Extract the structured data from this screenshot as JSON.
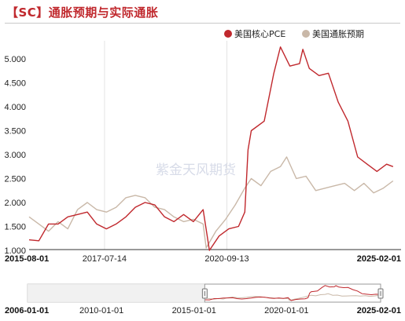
{
  "title": "【SC】通胀预期与实际通胀",
  "watermark": "紫金天风期货",
  "chart_data": {
    "type": "line",
    "x_range": [
      "2015-08-01",
      "2025-02-01"
    ],
    "ylim": [
      1.0,
      5.2
    ],
    "yticks": [
      "5.000",
      "4.500",
      "4.000",
      "3.500",
      "3.000",
      "2.500",
      "2.000",
      "1.500",
      "1.000"
    ],
    "ytick_values": [
      5.0,
      4.5,
      4.0,
      3.5,
      3.0,
      2.5,
      2.0,
      1.5,
      1.0
    ],
    "xticks": [
      {
        "date": "2015-08-01",
        "label": "2015-08-01",
        "bold": true
      },
      {
        "date": "2017-07-14",
        "label": "2017-07-14",
        "bold": false
      },
      {
        "date": "2020-09-13",
        "label": "2020-09-13",
        "bold": false
      },
      {
        "date": "2025-02-01",
        "label": "2025-02-01",
        "bold": true
      }
    ],
    "legend_position": "top-right",
    "grid": "vertical",
    "series": [
      {
        "name": "美国核心PCE",
        "color": "#c0282d",
        "points": [
          [
            "2015-08-01",
            1.22
          ],
          [
            "2015-11-01",
            1.2
          ],
          [
            "2016-02-01",
            1.55
          ],
          [
            "2016-05-01",
            1.55
          ],
          [
            "2016-08-01",
            1.7
          ],
          [
            "2016-11-01",
            1.75
          ],
          [
            "2017-02-01",
            1.8
          ],
          [
            "2017-05-01",
            1.55
          ],
          [
            "2017-08-01",
            1.45
          ],
          [
            "2017-11-01",
            1.55
          ],
          [
            "2018-02-01",
            1.7
          ],
          [
            "2018-05-01",
            1.9
          ],
          [
            "2018-08-01",
            2.0
          ],
          [
            "2018-11-01",
            1.95
          ],
          [
            "2019-02-01",
            1.7
          ],
          [
            "2019-05-01",
            1.6
          ],
          [
            "2019-08-01",
            1.75
          ],
          [
            "2019-11-01",
            1.6
          ],
          [
            "2020-02-01",
            1.85
          ],
          [
            "2020-04-01",
            1.0
          ],
          [
            "2020-07-01",
            1.3
          ],
          [
            "2020-10-01",
            1.45
          ],
          [
            "2021-01-01",
            1.5
          ],
          [
            "2021-03-01",
            1.8
          ],
          [
            "2021-04-01",
            3.1
          ],
          [
            "2021-05-01",
            3.5
          ],
          [
            "2021-06-01",
            3.55
          ],
          [
            "2021-09-01",
            3.7
          ],
          [
            "2021-12-01",
            4.7
          ],
          [
            "2022-02-01",
            5.25
          ],
          [
            "2022-05-01",
            4.85
          ],
          [
            "2022-08-01",
            4.9
          ],
          [
            "2022-09-01",
            5.2
          ],
          [
            "2022-11-01",
            4.8
          ],
          [
            "2023-02-01",
            4.65
          ],
          [
            "2023-05-01",
            4.7
          ],
          [
            "2023-08-01",
            4.1
          ],
          [
            "2023-11-01",
            3.7
          ],
          [
            "2024-02-01",
            2.95
          ],
          [
            "2024-05-01",
            2.8
          ],
          [
            "2024-08-01",
            2.65
          ],
          [
            "2024-11-01",
            2.8
          ],
          [
            "2025-01-01",
            2.75
          ]
        ]
      },
      {
        "name": "美国通胀预期",
        "color": "#c9b8a8",
        "points": [
          [
            "2015-08-01",
            1.7
          ],
          [
            "2015-11-01",
            1.55
          ],
          [
            "2016-02-01",
            1.4
          ],
          [
            "2016-05-01",
            1.6
          ],
          [
            "2016-08-01",
            1.45
          ],
          [
            "2016-11-01",
            1.85
          ],
          [
            "2017-02-01",
            2.0
          ],
          [
            "2017-05-01",
            1.85
          ],
          [
            "2017-08-01",
            1.8
          ],
          [
            "2017-11-01",
            1.9
          ],
          [
            "2018-02-01",
            2.1
          ],
          [
            "2018-05-01",
            2.15
          ],
          [
            "2018-08-01",
            2.1
          ],
          [
            "2018-11-01",
            1.9
          ],
          [
            "2019-02-01",
            1.85
          ],
          [
            "2019-05-01",
            1.7
          ],
          [
            "2019-08-01",
            1.6
          ],
          [
            "2019-11-01",
            1.65
          ],
          [
            "2020-02-01",
            1.55
          ],
          [
            "2020-03-01",
            1.05
          ],
          [
            "2020-06-01",
            1.4
          ],
          [
            "2020-09-01",
            1.65
          ],
          [
            "2020-12-01",
            1.95
          ],
          [
            "2021-03-01",
            2.3
          ],
          [
            "2021-05-01",
            2.5
          ],
          [
            "2021-08-01",
            2.35
          ],
          [
            "2021-11-01",
            2.65
          ],
          [
            "2022-02-01",
            2.75
          ],
          [
            "2022-04-01",
            2.95
          ],
          [
            "2022-07-01",
            2.5
          ],
          [
            "2022-10-01",
            2.55
          ],
          [
            "2023-01-01",
            2.25
          ],
          [
            "2023-04-01",
            2.3
          ],
          [
            "2023-07-01",
            2.35
          ],
          [
            "2023-10-01",
            2.4
          ],
          [
            "2024-01-01",
            2.25
          ],
          [
            "2024-04-01",
            2.4
          ],
          [
            "2024-07-01",
            2.2
          ],
          [
            "2024-10-01",
            2.3
          ],
          [
            "2025-01-01",
            2.45
          ]
        ]
      }
    ],
    "navigator": {
      "x_range": [
        "2006-01-01",
        "2025-02-01"
      ],
      "selected_range": [
        "2015-08-01",
        "2025-02-01"
      ],
      "xticks": [
        {
          "date": "2006-01-01",
          "label": "2006-01-01",
          "bold": true
        },
        {
          "date": "2010-01-01",
          "label": "2010-01-01",
          "bold": false
        },
        {
          "date": "2015-01-01",
          "label": "2015-01-01",
          "bold": false
        },
        {
          "date": "2020-01-01",
          "label": "2020-01-01",
          "bold": false
        },
        {
          "date": "2025-02-01",
          "label": "2025-02-01",
          "bold": true
        }
      ]
    }
  }
}
